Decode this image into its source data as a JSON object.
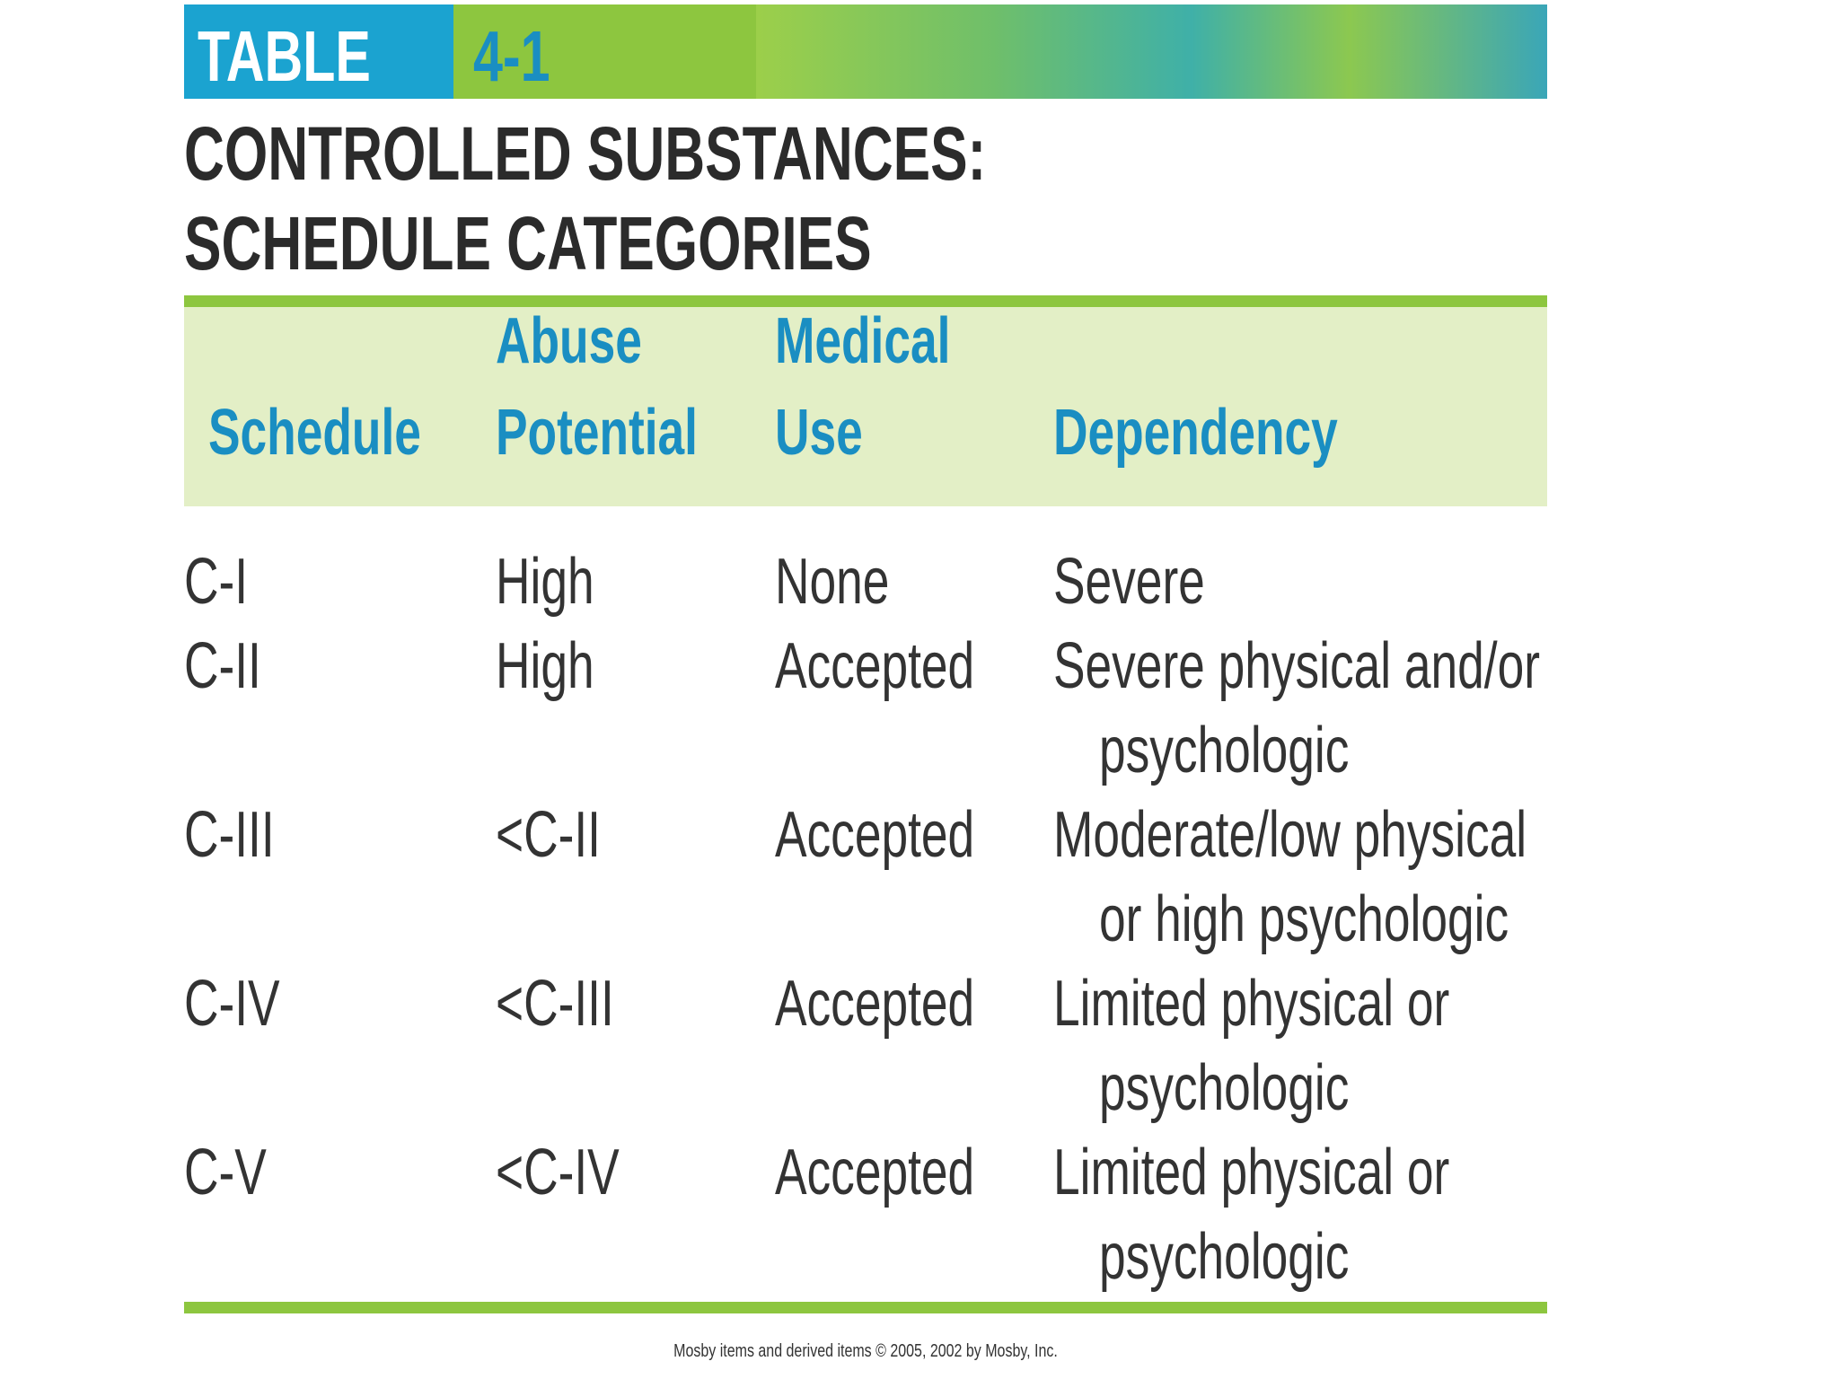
{
  "banner": {
    "label": "TABLE",
    "number": "4-1"
  },
  "title": "CONTROLLED SUBSTANCES: SCHEDULE CATEGORIES",
  "table": {
    "header": [
      [
        "Schedule"
      ],
      [
        "Abuse",
        "Potential"
      ],
      [
        "Medical",
        "Use"
      ],
      [
        "Dependency"
      ]
    ],
    "rows": [
      [
        "C-I",
        "High",
        "None",
        [
          "Severe"
        ]
      ],
      [
        "C-II",
        "High",
        "Accepted",
        [
          "Severe physical and/or",
          "psychologic"
        ]
      ],
      [
        "C-III",
        "<C-II",
        "Accepted",
        [
          "Moderate/low physical",
          "or high psychologic"
        ]
      ],
      [
        "C-IV",
        "<C-III",
        "Accepted",
        [
          "Limited physical or",
          "psychologic"
        ]
      ],
      [
        "C-V",
        "<C-IV",
        "Accepted",
        [
          "Limited physical or",
          "psychologic"
        ]
      ]
    ]
  },
  "footer": "Mosby items and derived items © 2005, 2002 by Mosby, Inc."
}
